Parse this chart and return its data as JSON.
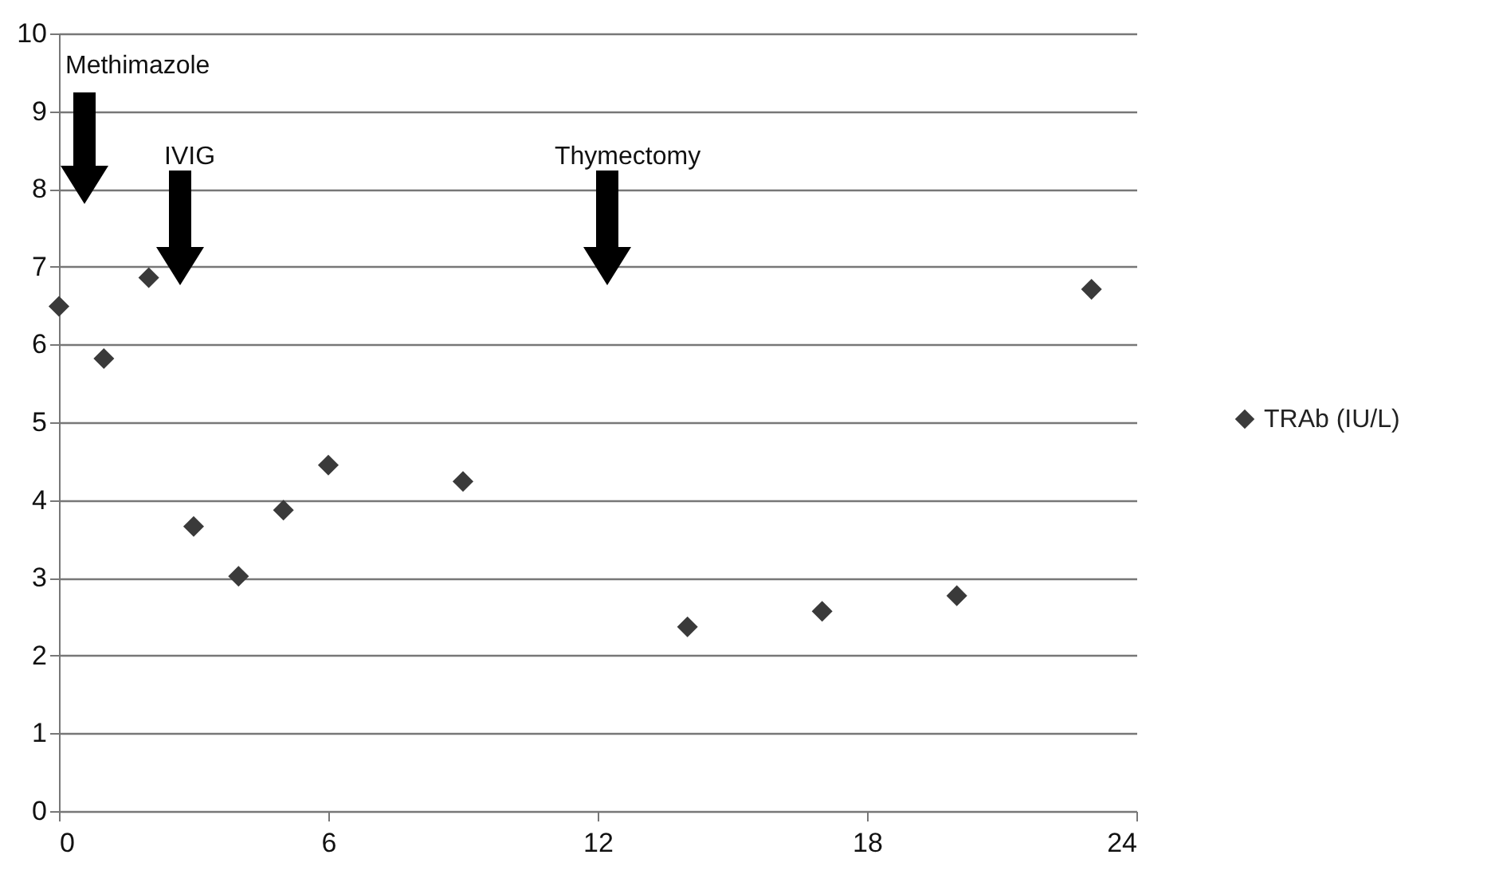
{
  "chart_data": {
    "type": "scatter",
    "x": [
      0,
      1,
      2,
      3,
      4,
      5,
      6,
      9,
      14,
      17,
      20,
      23
    ],
    "series": [
      {
        "name": "TRAb (IU/L)",
        "color": "#3a3a3a",
        "values": [
          6.49,
          5.82,
          6.86,
          3.66,
          3.02,
          3.87,
          4.45,
          4.24,
          2.37,
          2.57,
          2.77,
          6.71
        ]
      }
    ],
    "xlim": [
      0,
      24
    ],
    "xticks": [
      0,
      6,
      12,
      18,
      24
    ],
    "ylim": [
      0,
      10
    ],
    "yticks": [
      0,
      1,
      2,
      3,
      4,
      5,
      6,
      7,
      8,
      9,
      10
    ],
    "grid": "y",
    "legend": "right",
    "marker": "diamond",
    "annotations": [
      "Methimazole",
      "IVIG",
      "Thymectomy"
    ]
  }
}
